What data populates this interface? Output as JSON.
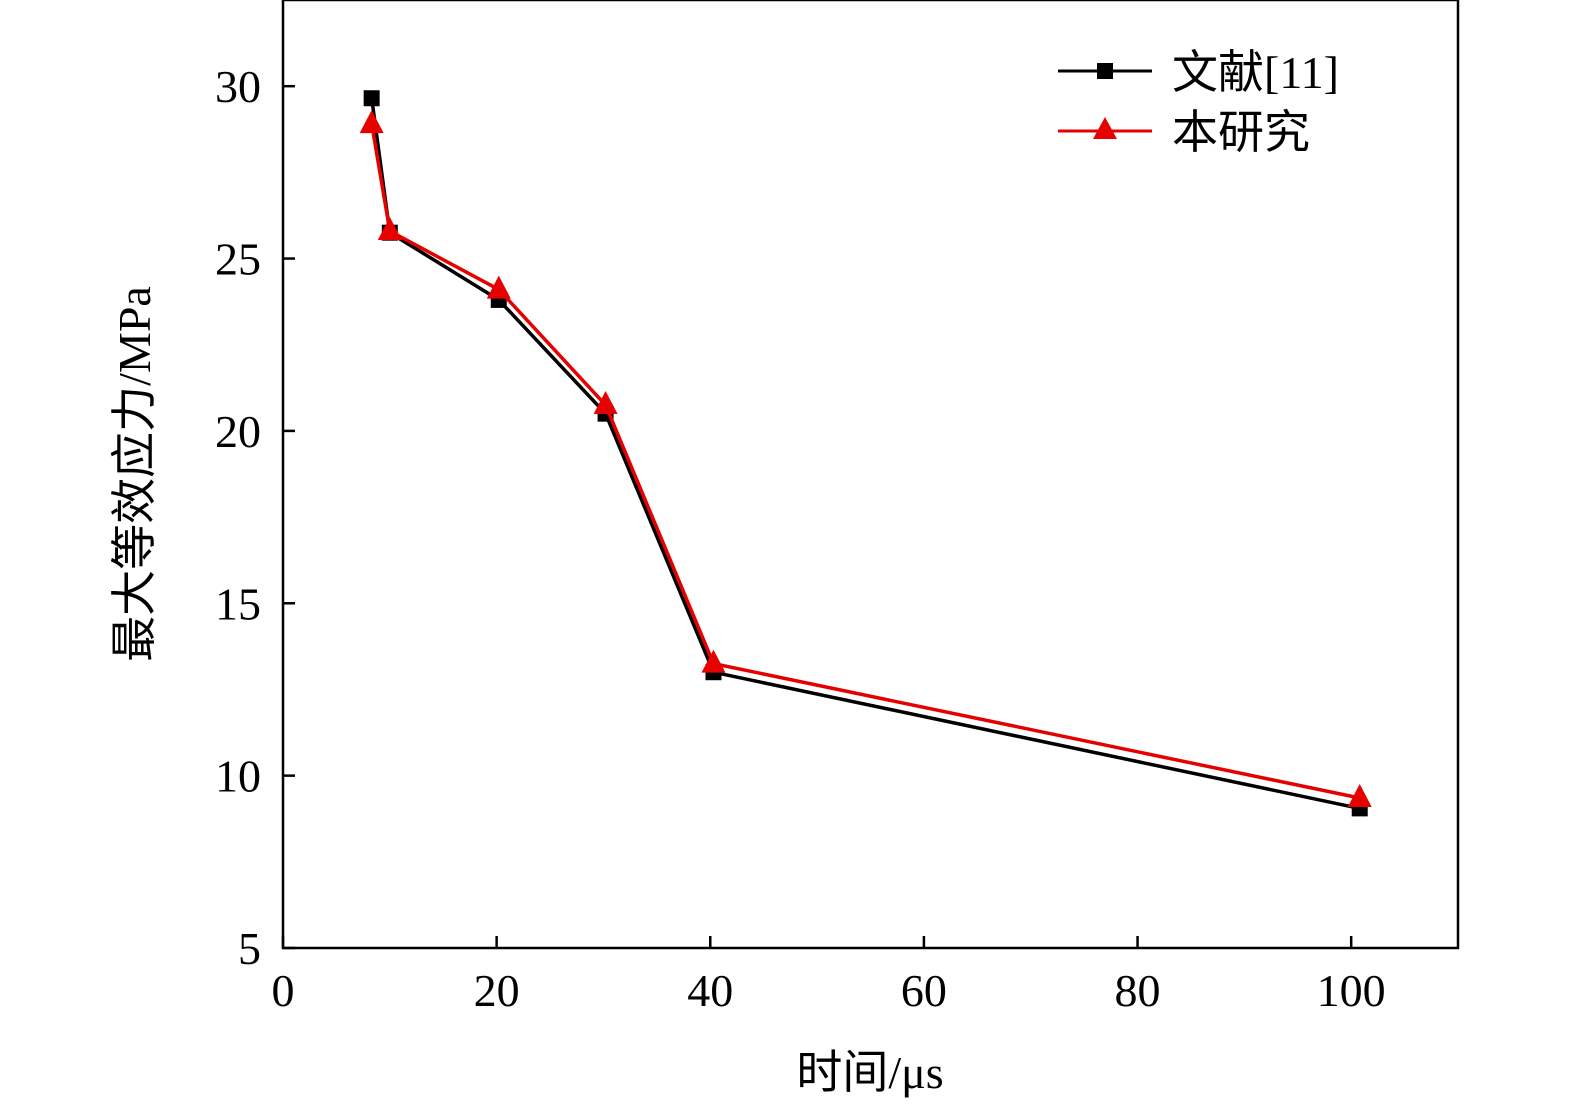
{
  "chart_data": {
    "type": "line",
    "title": "",
    "xlabel": "时间/μs",
    "ylabel": "最大等效应力/MPa",
    "xlim": [
      0,
      110
    ],
    "ylim": [
      5,
      32.5
    ],
    "xticks": [
      0,
      20,
      40,
      60,
      80,
      100
    ],
    "yticks": [
      5,
      10,
      15,
      20,
      25,
      30
    ],
    "xtick_labels": [
      "0",
      "20",
      "40",
      "60",
      "80",
      "100"
    ],
    "ytick_labels": [
      "5",
      "10",
      "15",
      "20",
      "25",
      "30"
    ],
    "grid": false,
    "legend_position": "top-right",
    "series": [
      {
        "name": "文献[11]",
        "color": "#000000",
        "marker": "square",
        "x": [
          8.3,
          10,
          20.2,
          30.2,
          40.3,
          100.8
        ],
        "y": [
          29.65,
          25.75,
          23.8,
          20.5,
          13.0,
          9.05
        ]
      },
      {
        "name": "本研究",
        "color": "#e60000",
        "marker": "triangle",
        "x": [
          8.3,
          10,
          20.2,
          30.2,
          40.3,
          100.8
        ],
        "y": [
          28.9,
          25.8,
          24.1,
          20.75,
          13.25,
          9.35
        ]
      }
    ]
  }
}
